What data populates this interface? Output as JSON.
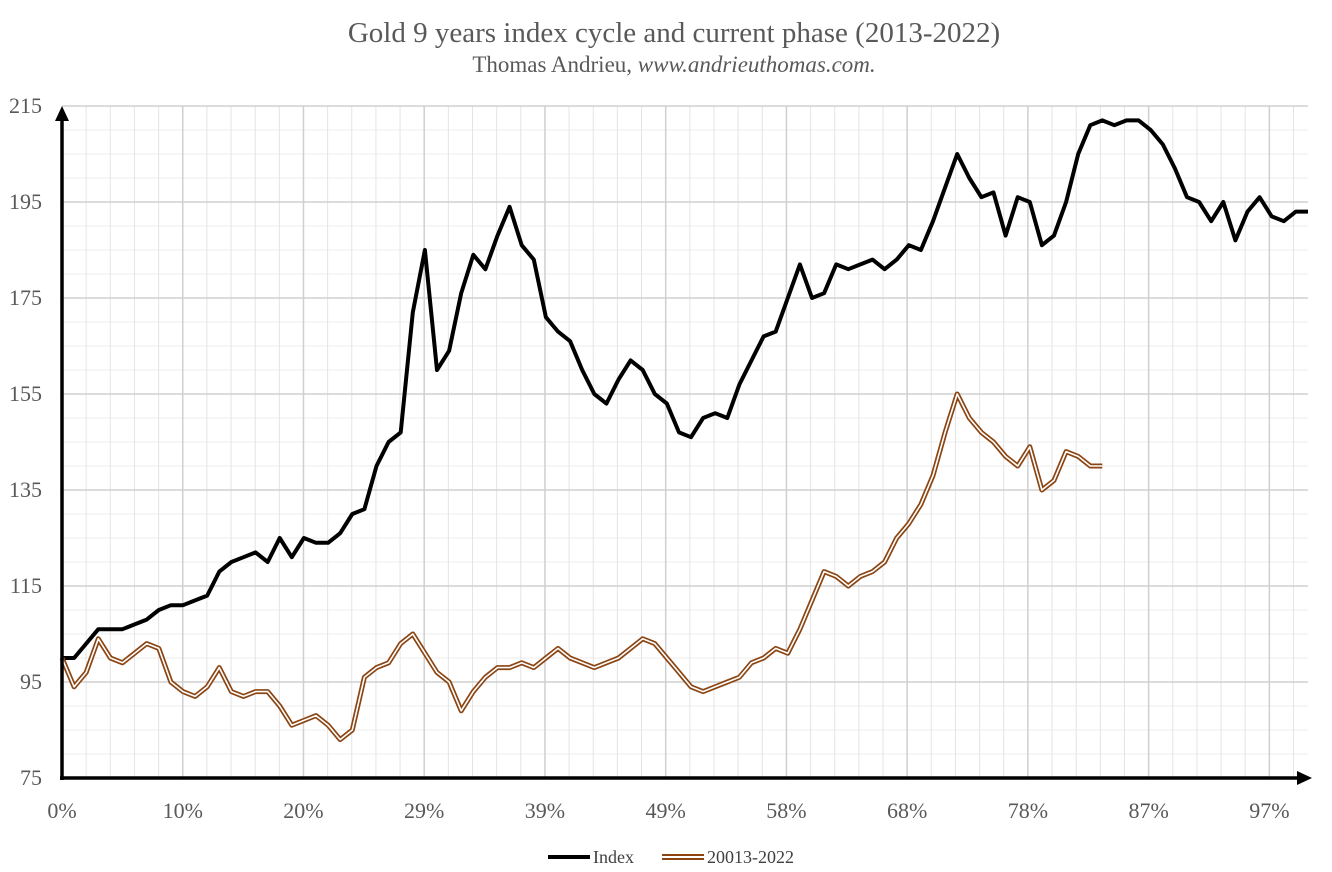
{
  "chart_data": {
    "type": "line",
    "title": "Gold 9 years index cycle and current phase (2013-2022)",
    "subtitle_author": "Thomas Andrieu,",
    "subtitle_site": "www.andrieuthomas.com.",
    "xlabel": "",
    "ylabel": "",
    "ylim": [
      75,
      215
    ],
    "y_ticks": [
      "215",
      "195",
      "175",
      "155",
      "135",
      "115",
      "95",
      "75"
    ],
    "x_ticks": [
      "0%",
      "10%",
      "20%",
      "29%",
      "39%",
      "49%",
      "58%",
      "68%",
      "78%",
      "87%",
      "97%"
    ],
    "x_range_pct": [
      0,
      103
    ],
    "grid": true,
    "legend_position": "bottom",
    "series": [
      {
        "name": "Index",
        "color": "#000000",
        "style": "solid",
        "x": [
          0,
          1,
          2,
          3,
          4,
          5,
          6,
          7,
          8,
          9,
          10,
          11,
          12,
          13,
          14,
          15,
          16,
          17,
          18,
          19,
          20,
          21,
          22,
          23,
          24,
          25,
          26,
          27,
          28,
          29,
          30,
          31,
          32,
          33,
          34,
          35,
          36,
          37,
          38,
          39,
          40,
          41,
          42,
          43,
          44,
          45,
          46,
          47,
          48,
          49,
          50,
          51,
          52,
          53,
          54,
          55,
          56,
          57,
          58,
          59,
          60,
          61,
          62,
          63,
          64,
          65,
          66,
          67,
          68,
          69,
          70,
          71,
          72,
          73,
          74,
          75,
          76,
          77,
          78,
          79,
          80,
          81,
          82,
          83,
          84,
          85,
          86,
          87,
          88,
          89,
          90,
          91,
          92,
          93,
          94,
          95,
          96,
          97,
          98,
          99,
          100,
          101,
          102,
          103
        ],
        "values": [
          100,
          100,
          103,
          106,
          106,
          106,
          107,
          108,
          110,
          111,
          111,
          112,
          113,
          118,
          120,
          121,
          122,
          120,
          125,
          121,
          125,
          124,
          124,
          126,
          130,
          131,
          140,
          145,
          147,
          172,
          185,
          160,
          164,
          176,
          184,
          181,
          188,
          194,
          186,
          183,
          171,
          168,
          166,
          160,
          155,
          153,
          158,
          162,
          160,
          155,
          153,
          147,
          146,
          150,
          151,
          150,
          157,
          162,
          167,
          168,
          175,
          182,
          175,
          176,
          182,
          181,
          182,
          183,
          181,
          183,
          186,
          185,
          191,
          198,
          205,
          200,
          196,
          197,
          188,
          196,
          195,
          186,
          188,
          195,
          205,
          211,
          212,
          211,
          212,
          212,
          210,
          207,
          202,
          196,
          195,
          191,
          195,
          187,
          193,
          196,
          192,
          191,
          193,
          193
        ]
      },
      {
        "name": "20013-2022",
        "color": "#8B4513",
        "style": "double",
        "x": [
          0,
          1,
          2,
          3,
          4,
          5,
          6,
          7,
          8,
          9,
          10,
          11,
          12,
          13,
          14,
          15,
          16,
          17,
          18,
          19,
          20,
          21,
          22,
          23,
          24,
          25,
          26,
          27,
          28,
          29,
          30,
          31,
          32,
          33,
          34,
          35,
          36,
          37,
          38,
          39,
          40,
          41,
          42,
          43,
          44,
          45,
          46,
          47,
          48,
          49,
          50,
          51,
          52,
          53,
          54,
          55,
          56,
          57,
          58,
          59,
          60,
          61,
          62,
          63,
          64,
          65,
          66,
          67,
          68,
          69,
          70,
          71,
          72,
          73,
          74,
          75,
          76,
          77,
          78,
          79,
          80,
          81,
          82,
          83,
          84,
          85,
          86
        ],
        "values": [
          100,
          94,
          97,
          104,
          100,
          99,
          101,
          103,
          102,
          95,
          93,
          92,
          94,
          98,
          93,
          92,
          93,
          93,
          90,
          86,
          87,
          88,
          86,
          83,
          85,
          96,
          98,
          99,
          103,
          105,
          101,
          97,
          95,
          89,
          93,
          96,
          98,
          98,
          99,
          98,
          100,
          102,
          100,
          99,
          98,
          99,
          100,
          102,
          104,
          103,
          100,
          97,
          94,
          93,
          94,
          95,
          96,
          99,
          100,
          102,
          101,
          106,
          112,
          118,
          117,
          115,
          117,
          118,
          120,
          125,
          128,
          132,
          138,
          147,
          155,
          150,
          147,
          145,
          142,
          140,
          144,
          135,
          137,
          143,
          142,
          140,
          140
        ]
      }
    ]
  },
  "legend": {
    "index_label": "Index",
    "cycle_label": "20013-2022"
  }
}
